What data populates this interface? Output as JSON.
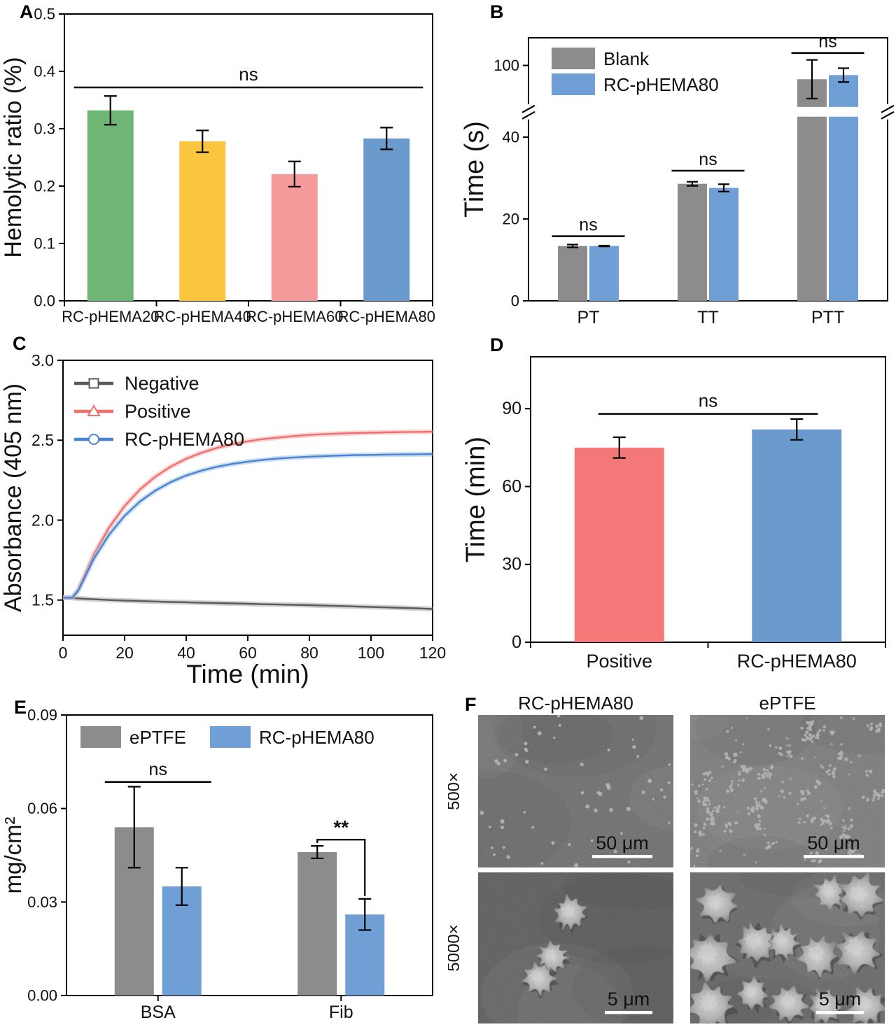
{
  "panels": {
    "a": {
      "label": "A"
    },
    "b": {
      "label": "B"
    },
    "c": {
      "label": "C"
    },
    "d": {
      "label": "D"
    },
    "e": {
      "label": "E"
    },
    "f": {
      "label": "F"
    }
  },
  "chart_data": [
    {
      "panel": "A",
      "type": "bar",
      "ylabel": "Hemolytic ratio (%)",
      "ylim": [
        0,
        0.5
      ],
      "yticks": [
        {
          "v": 0.0,
          "label": "0.0"
        },
        {
          "v": 0.1,
          "label": "0.1"
        },
        {
          "v": 0.2,
          "label": "0.2"
        },
        {
          "v": 0.3,
          "label": "0.3"
        },
        {
          "v": 0.4,
          "label": "0.4"
        },
        {
          "v": 0.5,
          "label": "0.5"
        }
      ],
      "categories": [
        "RC-pHEMA20",
        "RC-pHEMA40",
        "RC-pHEMA60",
        "RC-pHEMA80"
      ],
      "values": [
        0.332,
        0.278,
        0.221,
        0.283
      ],
      "errors": [
        0.025,
        0.019,
        0.022,
        0.019
      ],
      "bar_colors": [
        "#6FB573",
        "#FBC540",
        "#F59B9B",
        "#6B9BCD"
      ],
      "annotations": [
        {
          "type": "line",
          "label": "ns",
          "y": 0.372
        }
      ]
    },
    {
      "panel": "B",
      "type": "grouped_bar_break",
      "ylabel": "Time (s)",
      "categories": [
        "PT",
        "TT",
        "PTT"
      ],
      "series": [
        {
          "name": "Blank",
          "color": "#8C8C8C",
          "values": [
            13.4,
            28.6,
            95.0
          ],
          "errors": [
            0.35,
            0.5,
            7.0
          ]
        },
        {
          "name": "RC-pHEMA80",
          "color": "#6F9FD4",
          "values": [
            13.4,
            27.6,
            96.5
          ],
          "errors": [
            0.1,
            0.9,
            2.5
          ]
        }
      ],
      "y_break": {
        "lower_max": 45,
        "upper_min": 85,
        "upper_max": 110
      },
      "yticks_lower": [
        {
          "v": 0,
          "label": "0"
        },
        {
          "v": 20,
          "label": "20"
        },
        {
          "v": 40,
          "label": "40"
        }
      ],
      "yticks_upper": [
        {
          "v": 100,
          "label": "100"
        }
      ],
      "annotations": [
        {
          "type": "line",
          "label": "ns",
          "group": 0,
          "y": 15.8
        },
        {
          "type": "line",
          "label": "ns",
          "group": 1,
          "y": 31.8
        },
        {
          "type": "line",
          "label": "ns",
          "group": 2,
          "y": 104.5
        }
      ]
    },
    {
      "panel": "C",
      "type": "line",
      "xlabel": "Time (min)",
      "ylabel": "Absorbance (405 nm)",
      "xlim": [
        0,
        120
      ],
      "ylim": [
        1.28,
        3.0
      ],
      "xticks": [
        {
          "v": 0,
          "label": "0"
        },
        {
          "v": 20,
          "label": "20"
        },
        {
          "v": 40,
          "label": "40"
        },
        {
          "v": 60,
          "label": "60"
        },
        {
          "v": 80,
          "label": "80"
        },
        {
          "v": 100,
          "label": "100"
        },
        {
          "v": 120,
          "label": "120"
        }
      ],
      "yticks": [
        {
          "v": 1.5,
          "label": "1.5"
        },
        {
          "v": 2.0,
          "label": "2.0"
        },
        {
          "v": 2.5,
          "label": "2.5"
        },
        {
          "v": 3.0,
          "label": "3.0"
        }
      ],
      "series": [
        {
          "name": "Negative",
          "color": "#5A5A5A",
          "band": "#ABABAB",
          "marker": "square",
          "x": [
            0,
            3,
            5,
            10,
            15,
            20,
            25,
            30,
            35,
            40,
            45,
            50,
            55,
            60,
            65,
            70,
            75,
            80,
            85,
            90,
            95,
            100,
            105,
            110,
            115,
            120
          ],
          "y": [
            1.515,
            1.513,
            1.51,
            1.505,
            1.5,
            1.497,
            1.494,
            1.491,
            1.488,
            1.486,
            1.483,
            1.481,
            1.479,
            1.477,
            1.474,
            1.472,
            1.47,
            1.468,
            1.465,
            1.463,
            1.46,
            1.457,
            1.454,
            1.451,
            1.448,
            1.444
          ]
        },
        {
          "name": "Positive",
          "color": "#EF6F6F",
          "band": "#F7B1B1",
          "marker": "triangle",
          "x": [
            0,
            3,
            5,
            10,
            15,
            20,
            25,
            30,
            35,
            40,
            45,
            50,
            55,
            60,
            65,
            70,
            75,
            80,
            85,
            90,
            95,
            100,
            105,
            110,
            115,
            120
          ],
          "y": [
            1.515,
            1.515,
            1.566,
            1.785,
            1.955,
            2.088,
            2.192,
            2.272,
            2.335,
            2.384,
            2.422,
            2.452,
            2.475,
            2.493,
            2.507,
            2.517,
            2.526,
            2.533,
            2.538,
            2.542,
            2.545,
            2.547,
            2.549,
            2.551,
            2.552,
            2.553
          ]
        },
        {
          "name": "RC-pHEMA80",
          "color": "#4A83D0",
          "band": "#A3C2E8",
          "marker": "circle",
          "x": [
            0,
            3,
            5,
            10,
            15,
            20,
            25,
            30,
            35,
            40,
            45,
            50,
            55,
            60,
            65,
            70,
            75,
            80,
            85,
            90,
            95,
            100,
            105,
            110,
            115,
            120
          ],
          "y": [
            1.515,
            1.515,
            1.561,
            1.759,
            1.91,
            2.027,
            2.117,
            2.185,
            2.238,
            2.279,
            2.31,
            2.334,
            2.352,
            2.366,
            2.377,
            2.386,
            2.392,
            2.397,
            2.401,
            2.404,
            2.407,
            2.408,
            2.41,
            2.411,
            2.412,
            2.413
          ]
        }
      ]
    },
    {
      "panel": "D",
      "type": "bar",
      "ylabel": "Time (min)",
      "ylim": [
        0,
        110
      ],
      "yticks": [
        {
          "v": 0,
          "label": "0"
        },
        {
          "v": 30,
          "label": "30"
        },
        {
          "v": 60,
          "label": "60"
        },
        {
          "v": 90,
          "label": "90"
        }
      ],
      "categories": [
        "Positive",
        "RC-pHEMA80"
      ],
      "values": [
        75,
        82
      ],
      "errors": [
        4,
        4
      ],
      "bar_colors": [
        "#F47878",
        "#6B9BCD"
      ],
      "annotations": [
        {
          "type": "line",
          "label": "ns",
          "y": 88
        }
      ]
    },
    {
      "panel": "E",
      "type": "grouped_bar",
      "ylabel": "mg/cm²",
      "categories": [
        "BSA",
        "Fib"
      ],
      "series": [
        {
          "name": "ePTFE",
          "color": "#8C8C8C",
          "values": [
            0.054,
            0.046
          ],
          "errors": [
            0.013,
            0.002
          ]
        },
        {
          "name": "RC-pHEMA80",
          "color": "#6F9FD4",
          "values": [
            0.035,
            0.026
          ],
          "errors": [
            0.006,
            0.005
          ]
        }
      ],
      "ylim": [
        0,
        0.09
      ],
      "yticks": [
        {
          "v": 0,
          "label": "0.00"
        },
        {
          "v": 0.03,
          "label": "0.03"
        },
        {
          "v": 0.06,
          "label": "0.06"
        },
        {
          "v": 0.09,
          "label": "0.09"
        }
      ],
      "annotations": [
        {
          "type": "line",
          "label": "ns",
          "group": 0,
          "y": 0.0685
        },
        {
          "type": "bracket",
          "label": "**",
          "group": 1,
          "y": 0.05
        }
      ]
    },
    {
      "panel": "F",
      "type": "image_grid",
      "col_headers": [
        "RC-pHEMA80",
        "ePTFE"
      ],
      "row_labels": [
        "500×",
        "5000×"
      ],
      "cells": [
        {
          "row": 0,
          "col": 0,
          "scale_bar": "50 μm",
          "description": "sparse single platelets on smooth membrane"
        },
        {
          "row": 0,
          "col": 1,
          "scale_bar": "50 μm",
          "description": "dense clustered platelet aggregates"
        },
        {
          "row": 1,
          "col": 0,
          "scale_bar": "5 μm",
          "description": "few rounded platelets on textured surface"
        },
        {
          "row": 1,
          "col": 1,
          "scale_bar": "5 μm",
          "description": "many spread activated platelets"
        }
      ]
    }
  ]
}
